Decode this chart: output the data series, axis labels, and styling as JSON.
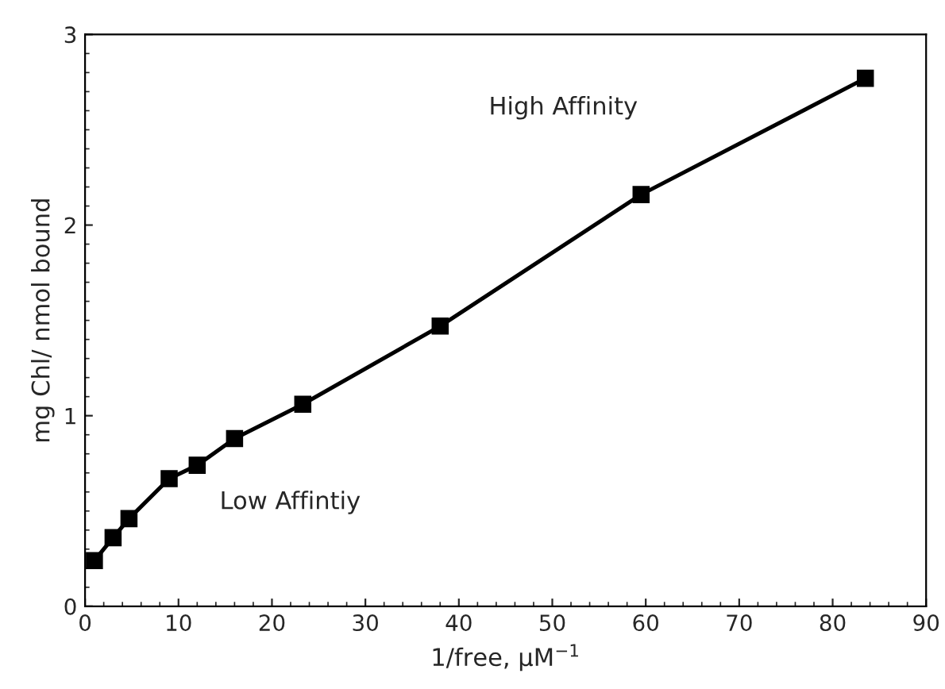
{
  "chart_data": {
    "type": "line",
    "xlabel": "1/free, μM$^{−1}$",
    "ylabel": "mg Chl/ nmol bound",
    "x": [
      1,
      3,
      4.7,
      9,
      12,
      16,
      23.3,
      38,
      59.5,
      83.5
    ],
    "series": [
      {
        "color": "#000000",
        "values": [
          0.24,
          0.36,
          0.46,
          0.67,
          0.74,
          0.88,
          1.06,
          1.47,
          2.16,
          2.77
        ]
      }
    ],
    "xlim": [
      0,
      90
    ],
    "xticks": [
      0,
      10,
      20,
      30,
      40,
      50,
      60,
      70,
      80,
      90
    ],
    "ylim": [
      0,
      3
    ],
    "yticks": [
      0,
      1,
      2,
      3
    ],
    "annotations": [
      "High Affinity",
      "Low Affintiy"
    ],
    "marker": "square",
    "line_style": "solid",
    "grid": false,
    "legend": false
  }
}
